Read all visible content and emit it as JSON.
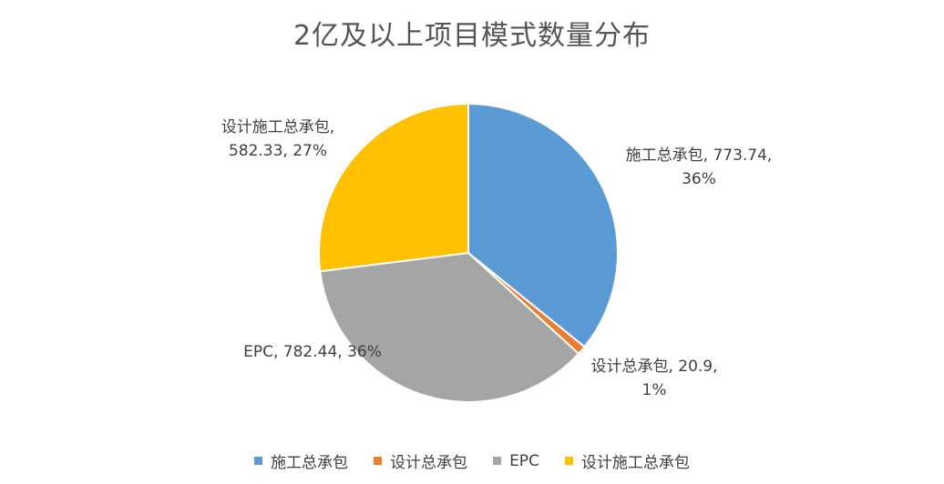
{
  "chart_data": {
    "type": "pie",
    "title": "2亿及以上项目模式数量分布",
    "slices": [
      {
        "name": "施工总承包",
        "value": 773.74,
        "percent": "36%",
        "color": "#5B9BD5",
        "label_lines": [
          "施工总承包, 773.74,",
          "36%"
        ]
      },
      {
        "name": "设计总承包",
        "value": 20.9,
        "percent": "1%",
        "color": "#ED7D31",
        "label_lines": [
          "设计总承包, 20.9,",
          "1%"
        ]
      },
      {
        "name": "EPC",
        "value": 782.44,
        "percent": "36%",
        "color": "#A5A5A5",
        "label_lines": [
          "EPC, 782.44, 36%"
        ]
      },
      {
        "name": "设计施工总承包",
        "value": 582.33,
        "percent": "27%",
        "color": "#FFC000",
        "label_lines": [
          "设计施工总承包,",
          "582.33, 27%"
        ]
      }
    ],
    "legend": {
      "position": "bottom"
    }
  }
}
